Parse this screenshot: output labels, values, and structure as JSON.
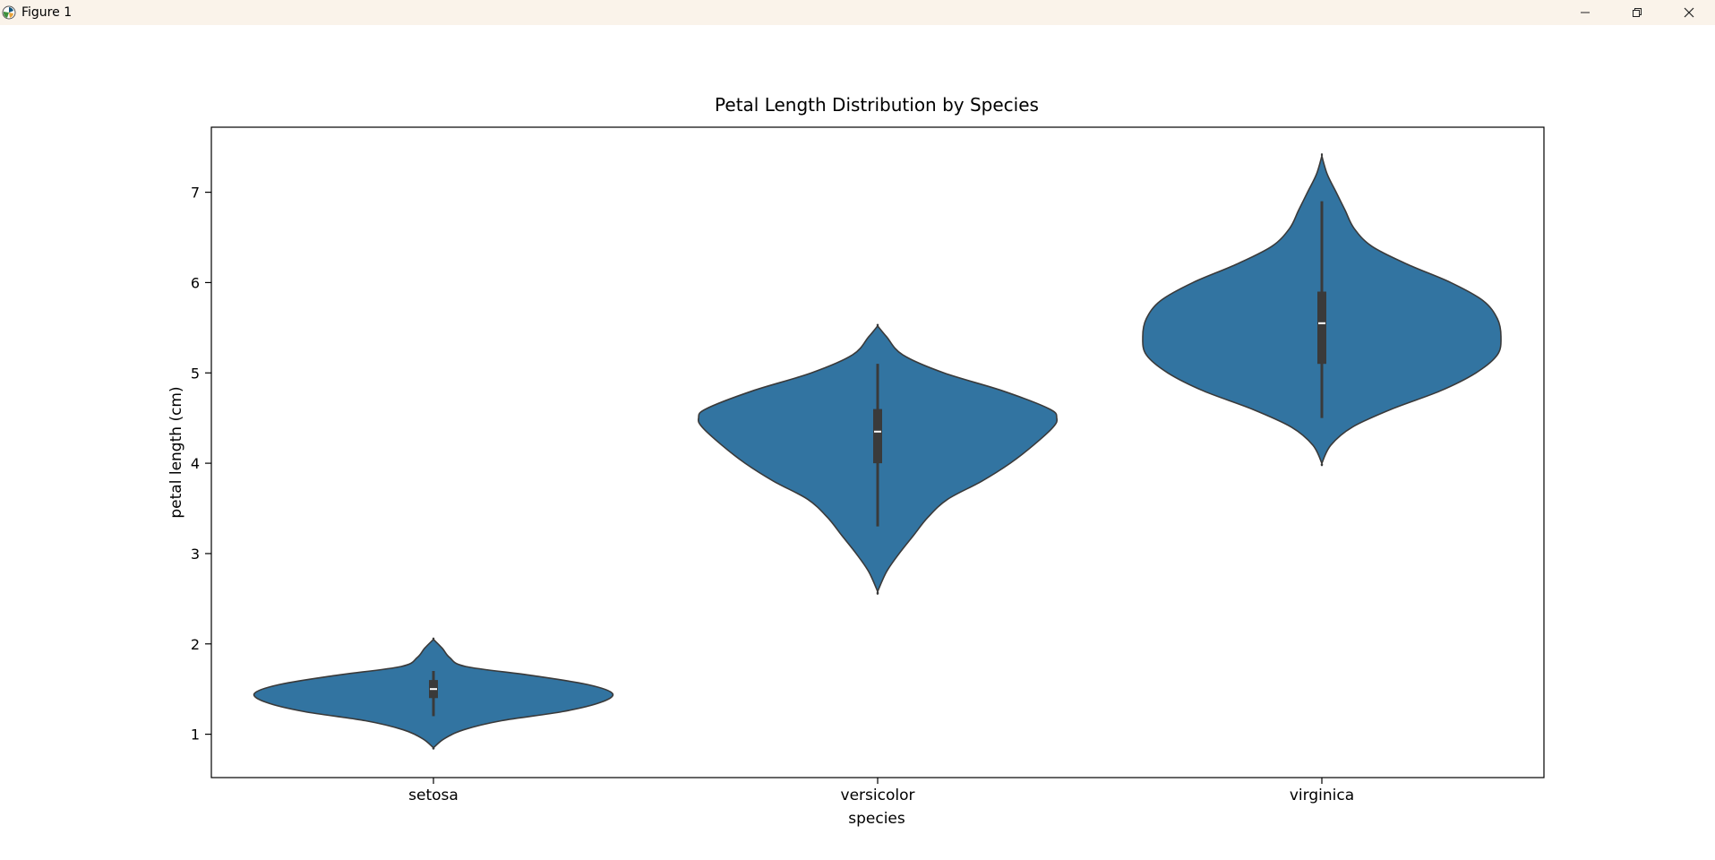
{
  "window": {
    "title": "Figure 1",
    "icons": [
      "matplotlib-logo-icon",
      "minimize-icon",
      "restore-icon",
      "close-icon"
    ]
  },
  "chart_data": {
    "type": "violin",
    "title": "Petal Length Distribution by Species",
    "xlabel": "species",
    "ylabel": "petal length (cm)",
    "categories": [
      "setosa",
      "versicolor",
      "virginica"
    ],
    "ylim": [
      0.52,
      7.72
    ],
    "yticks": [
      1,
      2,
      3,
      4,
      5,
      6,
      7
    ],
    "grid": false,
    "color": "#3274a1",
    "box_color": "#3a3a3a",
    "violins": [
      {
        "name": "setosa",
        "median": 1.5,
        "q1": 1.4,
        "q3": 1.6,
        "whisker_low": 1.2,
        "whisker_high": 1.7,
        "density_y": [
          0.85,
          0.95,
          1.05,
          1.15,
          1.25,
          1.35,
          1.45,
          1.55,
          1.65,
          1.75,
          1.85,
          1.95,
          2.05
        ],
        "density_w": [
          0.0,
          0.06,
          0.17,
          0.38,
          0.72,
          0.93,
          1.0,
          0.86,
          0.55,
          0.18,
          0.09,
          0.05,
          0.0
        ]
      },
      {
        "name": "versicolor",
        "median": 4.35,
        "q1": 4.0,
        "q3": 4.6,
        "whisker_low": 3.3,
        "whisker_high": 5.1,
        "density_y": [
          2.58,
          2.8,
          3.0,
          3.2,
          3.4,
          3.6,
          3.8,
          4.0,
          4.2,
          4.4,
          4.5,
          4.6,
          4.8,
          5.0,
          5.2,
          5.4,
          5.52
        ],
        "density_w": [
          0.0,
          0.05,
          0.12,
          0.2,
          0.28,
          0.39,
          0.58,
          0.74,
          0.87,
          0.98,
          1.0,
          0.96,
          0.7,
          0.37,
          0.14,
          0.05,
          0.0
        ]
      },
      {
        "name": "virginica",
        "median": 5.55,
        "q1": 5.1,
        "q3": 5.9,
        "whisker_low": 4.5,
        "whisker_high": 6.9,
        "density_y": [
          4.0,
          4.2,
          4.4,
          4.6,
          4.8,
          5.0,
          5.2,
          5.4,
          5.6,
          5.8,
          6.0,
          6.2,
          6.4,
          6.6,
          6.8,
          7.0,
          7.2,
          7.4
        ],
        "density_w": [
          0.0,
          0.05,
          0.17,
          0.39,
          0.66,
          0.86,
          0.98,
          1.0,
          0.98,
          0.9,
          0.72,
          0.48,
          0.28,
          0.18,
          0.13,
          0.08,
          0.03,
          0.0
        ]
      }
    ]
  }
}
